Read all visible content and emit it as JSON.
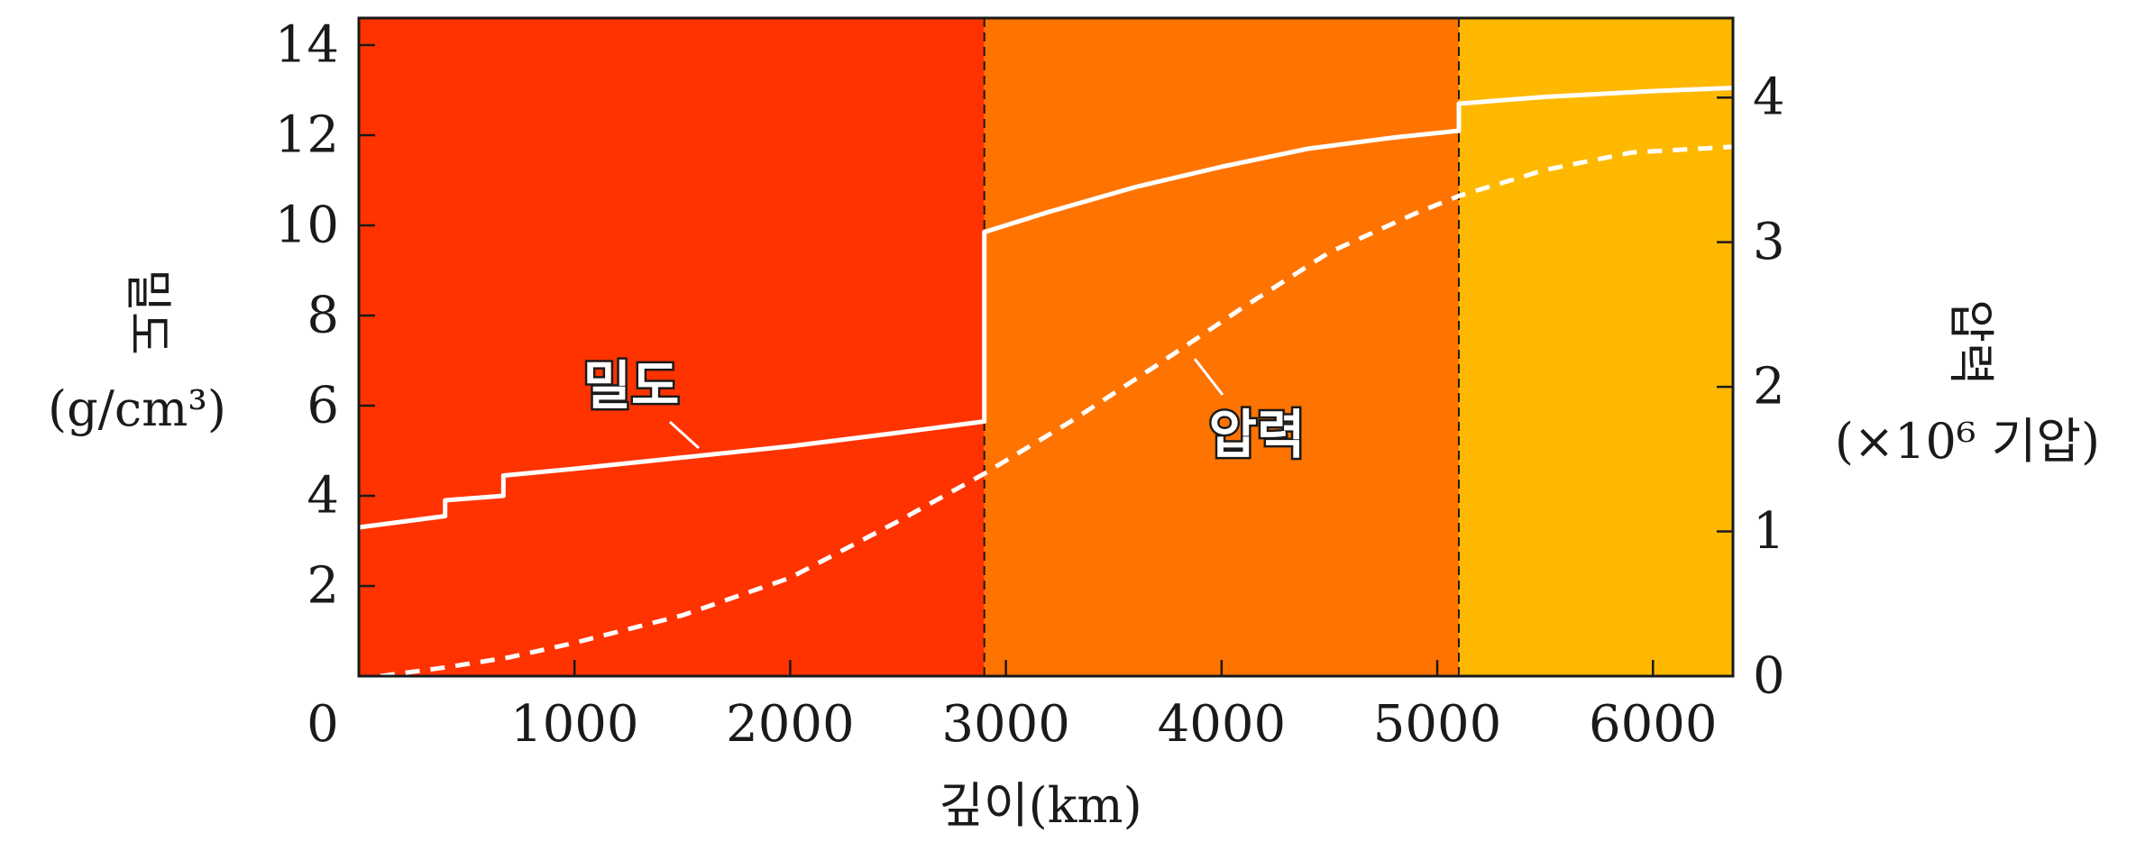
{
  "chart_data": {
    "type": "line",
    "x": {
      "label": "깊이(km)",
      "range": [
        0,
        6371
      ],
      "ticks": [
        0,
        1000,
        2000,
        3000,
        4000,
        5000,
        6000
      ],
      "tick_labels": [
        "0",
        "1000",
        "2000",
        "3000",
        "4000",
        "5000",
        "6000"
      ]
    },
    "y_left": {
      "label": "밀도",
      "unit": "(g/cm³)",
      "range": [
        0,
        14.6
      ],
      "ticks": [
        2,
        4,
        6,
        8,
        10,
        12,
        14
      ],
      "tick_labels": [
        "2",
        "4",
        "6",
        "8",
        "10",
        "12",
        "14"
      ]
    },
    "y_right": {
      "label": "압력",
      "unit": "(×10⁶ 기압)",
      "range": [
        0,
        4.55
      ],
      "ticks": [
        0,
        1,
        2,
        3,
        4
      ],
      "tick_labels": [
        "0",
        "1",
        "2",
        "3",
        "4"
      ]
    },
    "regions": [
      {
        "from": 0,
        "to": 2900,
        "color": "#ff3300"
      },
      {
        "from": 2900,
        "to": 5100,
        "color": "#ff7300"
      },
      {
        "from": 5100,
        "to": 6371,
        "color": "#ffb800"
      }
    ],
    "boundaries": [
      2900,
      5100
    ],
    "series": [
      {
        "name": "밀도",
        "axis": "left",
        "style": "solid",
        "color": "#ffffff",
        "points": [
          [
            0,
            3.3
          ],
          [
            400,
            3.55
          ],
          [
            400,
            3.9
          ],
          [
            670,
            4.0
          ],
          [
            670,
            4.45
          ],
          [
            1000,
            4.6
          ],
          [
            1500,
            4.85
          ],
          [
            2000,
            5.1
          ],
          [
            2500,
            5.4
          ],
          [
            2900,
            5.65
          ],
          [
            2900,
            9.85
          ],
          [
            3200,
            10.3
          ],
          [
            3600,
            10.85
          ],
          [
            4000,
            11.3
          ],
          [
            4400,
            11.7
          ],
          [
            4800,
            11.95
          ],
          [
            5100,
            12.1
          ],
          [
            5100,
            12.7
          ],
          [
            5500,
            12.85
          ],
          [
            6000,
            12.98
          ],
          [
            6371,
            13.05
          ]
        ]
      },
      {
        "name": "압력",
        "axis": "right",
        "style": "dashed",
        "color": "#ffffff",
        "points": [
          [
            100,
            0.0
          ],
          [
            400,
            0.06
          ],
          [
            700,
            0.13
          ],
          [
            1000,
            0.23
          ],
          [
            1500,
            0.42
          ],
          [
            2000,
            0.68
          ],
          [
            2500,
            1.07
          ],
          [
            2900,
            1.4
          ],
          [
            3300,
            1.76
          ],
          [
            3700,
            2.15
          ],
          [
            4100,
            2.55
          ],
          [
            4500,
            2.93
          ],
          [
            4900,
            3.2
          ],
          [
            5100,
            3.32
          ],
          [
            5500,
            3.5
          ],
          [
            5900,
            3.62
          ],
          [
            6371,
            3.66
          ]
        ]
      }
    ],
    "annotations": [
      {
        "text": "밀도",
        "series": "밀도"
      },
      {
        "text": "압력",
        "series": "압력"
      }
    ]
  }
}
